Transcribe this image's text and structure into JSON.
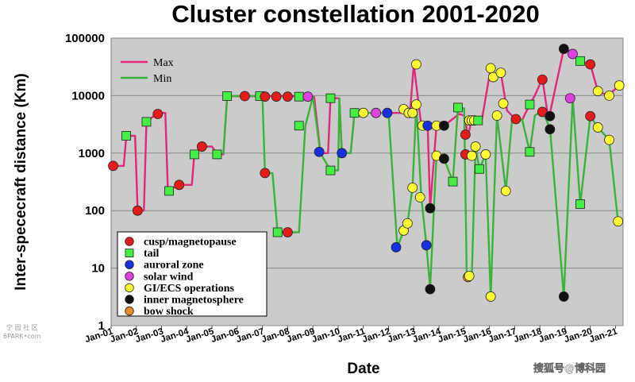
{
  "chart_data": {
    "type": "line",
    "title": "Cluster constellation 2001-2020",
    "xlabel": "Date",
    "ylabel": "Inter-spececraft distance (Km)",
    "yscale": "log",
    "ylim": [
      1,
      100000
    ],
    "xlim": [
      2001.0,
      2021.3
    ],
    "grid": true,
    "yticks": [
      "1",
      "10",
      "100",
      "1000",
      "10000",
      "100000"
    ],
    "xticks": [
      "Jan-01",
      "Jan-02",
      "Jan-03",
      "Jan-04",
      "Jan-05",
      "Jan-06",
      "Jan-07",
      "Jan-08",
      "Jan-09",
      "Jan-10",
      "Jan-11",
      "Jan-12",
      "Jan-13",
      "Jan-14",
      "Jan-15",
      "Jan-16",
      "Jan-17",
      "Jan-18",
      "Jan-19",
      "Jan-20",
      "Jan-21"
    ],
    "line_legend": {
      "placement": "top-left",
      "entries": [
        {
          "label": "Max",
          "color": "#e0287c"
        },
        {
          "label": "Min",
          "color": "#3cb23c"
        }
      ]
    },
    "marker_legend": {
      "placement": "bottom-left",
      "entries": [
        {
          "label": "cusp/magnetopause",
          "color": "#e41b1b",
          "shape": "circle"
        },
        {
          "label": "tail",
          "color": "#44ee44",
          "shape": "square"
        },
        {
          "label": "auroral zone",
          "color": "#1830e0",
          "shape": "circle"
        },
        {
          "label": "solar wind",
          "color": "#e040e0",
          "shape": "circle"
        },
        {
          "label": "GI/ECS operations",
          "color": "#ffff33",
          "shape": "circle"
        },
        {
          "label": "inner magnetosphere",
          "color": "#111111",
          "shape": "circle"
        },
        {
          "label": "bow shock",
          "color": "#f08a1e",
          "shape": "circle"
        }
      ]
    },
    "series": [
      {
        "name": "Max",
        "color": "#e0287c",
        "points": [
          [
            2001.08,
            600
          ],
          [
            2001.5,
            600
          ],
          [
            2001.6,
            2000
          ],
          [
            2001.95,
            2000
          ],
          [
            2002.05,
            100
          ],
          [
            2002.3,
            100
          ],
          [
            2002.4,
            3500
          ],
          [
            2002.85,
            5000
          ],
          [
            2003.15,
            5000
          ],
          [
            2003.25,
            220
          ],
          [
            2003.7,
            280
          ],
          [
            2004.2,
            280
          ],
          [
            2004.3,
            1000
          ],
          [
            2004.6,
            1300
          ],
          [
            2005.0,
            1300
          ],
          [
            2005.2,
            950
          ],
          [
            2005.45,
            950
          ],
          [
            2005.6,
            9800
          ],
          [
            2006.0,
            9800
          ],
          [
            2006.9,
            9800
          ],
          [
            2007.0,
            9800
          ],
          [
            2007.7,
            9800
          ],
          [
            2008.9,
            9800
          ],
          [
            2009.05,
            9500
          ],
          [
            2009.3,
            1000
          ],
          [
            2009.6,
            1000
          ],
          [
            2009.7,
            9000
          ],
          [
            2010.05,
            9000
          ],
          [
            2010.15,
            1000
          ],
          [
            2010.5,
            1000
          ],
          [
            2010.65,
            5000
          ],
          [
            2012.3,
            5000
          ],
          [
            2012.6,
            5000
          ],
          [
            2012.85,
            5000
          ],
          [
            2013.0,
            35000
          ],
          [
            2013.3,
            3000
          ],
          [
            2013.55,
            3000
          ],
          [
            2013.65,
            110
          ],
          [
            2013.9,
            3000
          ],
          [
            2014.2,
            3000
          ],
          [
            2014.8,
            4800
          ],
          [
            2015.0,
            4500
          ],
          [
            2015.15,
            2000
          ],
          [
            2015.3,
            3800
          ],
          [
            2015.45,
            3800
          ],
          [
            2015.55,
            3800
          ],
          [
            2015.7,
            3800
          ],
          [
            2016.05,
            30000
          ],
          [
            2016.2,
            22000
          ],
          [
            2016.45,
            25000
          ],
          [
            2016.7,
            5500
          ],
          [
            2017.0,
            4000
          ],
          [
            2017.3,
            3800
          ],
          [
            2017.6,
            7000
          ],
          [
            2017.8,
            10000
          ],
          [
            2018.1,
            20000
          ],
          [
            2018.3,
            5000
          ],
          [
            2018.4,
            5000
          ],
          [
            2018.95,
            65000
          ],
          [
            2019.3,
            55000
          ],
          [
            2019.6,
            40000
          ],
          [
            2020.0,
            35000
          ],
          [
            2020.3,
            12000
          ],
          [
            2020.7,
            10000
          ],
          [
            2021.15,
            15000
          ]
        ]
      },
      {
        "name": "Min",
        "color": "#3cb23c",
        "points": [
          [
            2005.45,
            950
          ],
          [
            2005.6,
            9800
          ],
          [
            2006.0,
            9800
          ],
          [
            2006.9,
            9800
          ],
          [
            2007.0,
            9800
          ],
          [
            2007.1,
            450
          ],
          [
            2007.4,
            450
          ],
          [
            2007.6,
            42
          ],
          [
            2008.25,
            42
          ],
          [
            2008.45,
            42
          ],
          [
            2008.7,
            3000
          ],
          [
            2009.0,
            9600
          ],
          [
            2009.3,
            1000
          ],
          [
            2009.7,
            500
          ],
          [
            2010.0,
            500
          ],
          [
            2010.05,
            9000
          ],
          [
            2010.15,
            1000
          ],
          [
            2010.5,
            1000
          ],
          [
            2010.65,
            5000
          ],
          [
            2011.1,
            5000
          ],
          [
            2011.6,
            5000
          ],
          [
            2012.0,
            5000
          ],
          [
            2012.35,
            23
          ],
          [
            2012.6,
            45
          ],
          [
            2012.75,
            60
          ],
          [
            2012.95,
            250
          ],
          [
            2013.1,
            7000
          ],
          [
            2013.3,
            170
          ],
          [
            2013.5,
            25
          ],
          [
            2013.65,
            4.5
          ],
          [
            2013.9,
            900
          ],
          [
            2014.2,
            800
          ],
          [
            2014.55,
            320
          ],
          [
            2014.75,
            6000
          ],
          [
            2015.0,
            6000
          ],
          [
            2015.1,
            7
          ],
          [
            2015.3,
            7
          ],
          [
            2015.45,
            1300
          ],
          [
            2015.6,
            530
          ],
          [
            2015.85,
            950
          ],
          [
            2016.05,
            3.2
          ],
          [
            2016.3,
            4500
          ],
          [
            2016.65,
            220
          ],
          [
            2016.9,
            4000
          ],
          [
            2017.3,
            3800
          ],
          [
            2017.6,
            1050
          ],
          [
            2017.8,
            4500
          ],
          [
            2018.1,
            5500
          ],
          [
            2018.4,
            2700
          ],
          [
            2018.95,
            3.2
          ],
          [
            2019.3,
            9000
          ],
          [
            2019.6,
            130
          ],
          [
            2020.0,
            4400
          ],
          [
            2020.3,
            2800
          ],
          [
            2020.75,
            1700
          ],
          [
            2021.1,
            65
          ]
        ]
      }
    ],
    "markers": [
      {
        "x": 2001.08,
        "y": 600,
        "type": "cusp/magnetopause"
      },
      {
        "x": 2001.6,
        "y": 2000,
        "type": "tail"
      },
      {
        "x": 2002.05,
        "y": 100,
        "type": "cusp/magnetopause"
      },
      {
        "x": 2002.4,
        "y": 3500,
        "type": "tail"
      },
      {
        "x": 2002.85,
        "y": 4800,
        "type": "cusp/magnetopause"
      },
      {
        "x": 2003.3,
        "y": 220,
        "type": "tail"
      },
      {
        "x": 2003.7,
        "y": 280,
        "type": "cusp/magnetopause"
      },
      {
        "x": 2004.3,
        "y": 950,
        "type": "tail"
      },
      {
        "x": 2004.6,
        "y": 1300,
        "type": "cusp/magnetopause"
      },
      {
        "x": 2005.2,
        "y": 950,
        "type": "tail"
      },
      {
        "x": 2005.6,
        "y": 9800,
        "type": "tail"
      },
      {
        "x": 2006.3,
        "y": 9800,
        "type": "cusp/magnetopause"
      },
      {
        "x": 2006.9,
        "y": 9800,
        "type": "tail"
      },
      {
        "x": 2007.1,
        "y": 9600,
        "type": "cusp/magnetopause"
      },
      {
        "x": 2007.55,
        "y": 9600,
        "type": "cusp/magnetopause"
      },
      {
        "x": 2008.0,
        "y": 9600,
        "type": "cusp/magnetopause"
      },
      {
        "x": 2008.45,
        "y": 9600,
        "type": "tail"
      },
      {
        "x": 2008.8,
        "y": 9600,
        "type": "solar wind"
      },
      {
        "x": 2007.1,
        "y": 450,
        "type": "cusp/magnetopause"
      },
      {
        "x": 2007.6,
        "y": 42,
        "type": "tail"
      },
      {
        "x": 2008.0,
        "y": 42,
        "type": "cusp/magnetopause"
      },
      {
        "x": 2008.45,
        "y": 3000,
        "type": "tail"
      },
      {
        "x": 2009.25,
        "y": 1050,
        "type": "auroral zone"
      },
      {
        "x": 2009.7,
        "y": 500,
        "type": "tail"
      },
      {
        "x": 2009.7,
        "y": 9000,
        "type": "tail"
      },
      {
        "x": 2010.15,
        "y": 1000,
        "type": "auroral zone"
      },
      {
        "x": 2010.65,
        "y": 5000,
        "type": "tail"
      },
      {
        "x": 2011.0,
        "y": 5000,
        "type": "GI/ECS operations"
      },
      {
        "x": 2011.5,
        "y": 5000,
        "type": "solar wind"
      },
      {
        "x": 2011.95,
        "y": 5000,
        "type": "auroral zone"
      },
      {
        "x": 2012.3,
        "y": 23,
        "type": "auroral zone"
      },
      {
        "x": 2012.6,
        "y": 45,
        "type": "GI/ECS operations"
      },
      {
        "x": 2012.75,
        "y": 60,
        "type": "GI/ECS operations"
      },
      {
        "x": 2012.6,
        "y": 5800,
        "type": "GI/ECS operations"
      },
      {
        "x": 2012.8,
        "y": 5000,
        "type": "GI/ECS operations"
      },
      {
        "x": 2012.95,
        "y": 5000,
        "type": "GI/ECS operations"
      },
      {
        "x": 2012.95,
        "y": 250,
        "type": "GI/ECS operations"
      },
      {
        "x": 2013.1,
        "y": 7000,
        "type": "GI/ECS operations"
      },
      {
        "x": 2013.1,
        "y": 35000,
        "type": "GI/ECS operations"
      },
      {
        "x": 2013.25,
        "y": 170,
        "type": "GI/ECS operations"
      },
      {
        "x": 2013.35,
        "y": 3000,
        "type": "GI/ECS operations"
      },
      {
        "x": 2013.5,
        "y": 25,
        "type": "auroral zone"
      },
      {
        "x": 2013.55,
        "y": 3000,
        "type": "auroral zone"
      },
      {
        "x": 2013.65,
        "y": 4.3,
        "type": "inner magnetosphere"
      },
      {
        "x": 2013.65,
        "y": 110,
        "type": "inner magnetosphere"
      },
      {
        "x": 2013.9,
        "y": 900,
        "type": "GI/ECS operations"
      },
      {
        "x": 2013.9,
        "y": 3000,
        "type": "GI/ECS operations"
      },
      {
        "x": 2014.2,
        "y": 800,
        "type": "inner magnetosphere"
      },
      {
        "x": 2014.2,
        "y": 3000,
        "type": "inner magnetosphere"
      },
      {
        "x": 2014.55,
        "y": 320,
        "type": "tail"
      },
      {
        "x": 2014.75,
        "y": 6200,
        "type": "tail"
      },
      {
        "x": 2015.05,
        "y": 950,
        "type": "cusp/magnetopause"
      },
      {
        "x": 2015.05,
        "y": 2100,
        "type": "cusp/magnetopause"
      },
      {
        "x": 2015.15,
        "y": 7,
        "type": "bow shock"
      },
      {
        "x": 2015.2,
        "y": 7.3,
        "type": "GI/ECS operations"
      },
      {
        "x": 2015.2,
        "y": 3700,
        "type": "GI/ECS operations"
      },
      {
        "x": 2015.3,
        "y": 3700,
        "type": "GI/ECS operations"
      },
      {
        "x": 2015.3,
        "y": 900,
        "type": "GI/ECS operations"
      },
      {
        "x": 2015.4,
        "y": 3700,
        "type": "GI/ECS operations"
      },
      {
        "x": 2015.45,
        "y": 1300,
        "type": "GI/ECS operations"
      },
      {
        "x": 2015.55,
        "y": 3700,
        "type": "tail"
      },
      {
        "x": 2015.6,
        "y": 530,
        "type": "tail"
      },
      {
        "x": 2015.85,
        "y": 950,
        "type": "GI/ECS operations"
      },
      {
        "x": 2016.05,
        "y": 3.2,
        "type": "GI/ECS operations"
      },
      {
        "x": 2016.05,
        "y": 30000,
        "type": "GI/ECS operations"
      },
      {
        "x": 2016.15,
        "y": 21000,
        "type": "GI/ECS operations"
      },
      {
        "x": 2016.3,
        "y": 4500,
        "type": "GI/ECS operations"
      },
      {
        "x": 2016.45,
        "y": 25000,
        "type": "GI/ECS operations"
      },
      {
        "x": 2016.55,
        "y": 7300,
        "type": "GI/ECS operations"
      },
      {
        "x": 2016.65,
        "y": 220,
        "type": "GI/ECS operations"
      },
      {
        "x": 2017.05,
        "y": 3900,
        "type": "cusp/magnetopause"
      },
      {
        "x": 2017.6,
        "y": 1050,
        "type": "tail"
      },
      {
        "x": 2017.6,
        "y": 7000,
        "type": "tail"
      },
      {
        "x": 2018.1,
        "y": 5200,
        "type": "cusp/magnetopause"
      },
      {
        "x": 2018.1,
        "y": 19000,
        "type": "cusp/magnetopause"
      },
      {
        "x": 2018.4,
        "y": 4400,
        "type": "inner magnetosphere"
      },
      {
        "x": 2018.4,
        "y": 2600,
        "type": "inner magnetosphere"
      },
      {
        "x": 2018.95,
        "y": 3.2,
        "type": "inner magnetosphere"
      },
      {
        "x": 2018.95,
        "y": 65000,
        "type": "inner magnetosphere"
      },
      {
        "x": 2019.2,
        "y": 9000,
        "type": "solar wind"
      },
      {
        "x": 2019.3,
        "y": 53000,
        "type": "solar wind"
      },
      {
        "x": 2019.6,
        "y": 40000,
        "type": "tail"
      },
      {
        "x": 2019.6,
        "y": 130,
        "type": "tail"
      },
      {
        "x": 2020.0,
        "y": 35000,
        "type": "cusp/magnetopause"
      },
      {
        "x": 2020.0,
        "y": 4400,
        "type": "cusp/magnetopause"
      },
      {
        "x": 2020.3,
        "y": 2800,
        "type": "GI/ECS operations"
      },
      {
        "x": 2020.3,
        "y": 12000,
        "type": "GI/ECS operations"
      },
      {
        "x": 2020.75,
        "y": 1700,
        "type": "GI/ECS operations"
      },
      {
        "x": 2020.75,
        "y": 10000,
        "type": "GI/ECS operations"
      },
      {
        "x": 2021.1,
        "y": 65,
        "type": "GI/ECS operations"
      },
      {
        "x": 2021.15,
        "y": 15000,
        "type": "GI/ECS operations"
      }
    ]
  },
  "watermarks": {
    "left_line1": "宁 园 社 区",
    "left_line2": "6PARK•com",
    "right": "搜狐号@博科园"
  }
}
